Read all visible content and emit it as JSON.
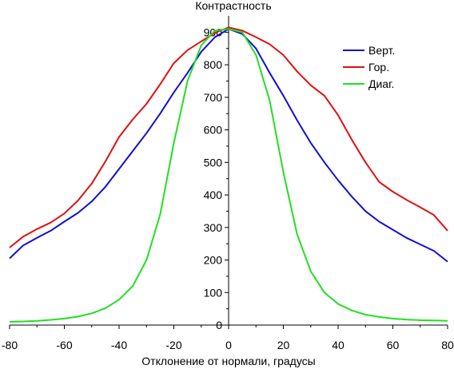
{
  "chart_data": {
    "type": "line",
    "title": "Контрастность",
    "xlabel": "Отклонение от нормали, градусы",
    "ylabel": "",
    "xlim": [
      -80,
      80
    ],
    "ylim": [
      0,
      950
    ],
    "xticks": [
      -80,
      -60,
      -40,
      -20,
      0,
      20,
      40,
      60,
      80
    ],
    "yticks": [
      0,
      100,
      200,
      300,
      400,
      500,
      600,
      700,
      800,
      900
    ],
    "grid": false,
    "legend_position": "top-right",
    "series": [
      {
        "name": "Верт.",
        "color": "#1010d0",
        "x": [
          -80,
          -75,
          -70,
          -65,
          -60,
          -55,
          -50,
          -45,
          -40,
          -35,
          -30,
          -25,
          -20,
          -15,
          -10,
          -5,
          0,
          5,
          10,
          15,
          20,
          25,
          30,
          35,
          40,
          45,
          50,
          55,
          60,
          65,
          70,
          75,
          80
        ],
        "y": [
          205,
          245,
          268,
          290,
          318,
          345,
          380,
          425,
          480,
          535,
          590,
          650,
          715,
          775,
          840,
          885,
          910,
          895,
          850,
          775,
          705,
          630,
          560,
          500,
          445,
          395,
          350,
          318,
          293,
          268,
          248,
          228,
          195
        ]
      },
      {
        "name": "Гор.",
        "color": "#e01010",
        "x": [
          -80,
          -75,
          -70,
          -65,
          -60,
          -55,
          -50,
          -45,
          -40,
          -35,
          -30,
          -25,
          -20,
          -15,
          -10,
          -5,
          0,
          5,
          10,
          15,
          20,
          25,
          30,
          35,
          40,
          45,
          50,
          55,
          60,
          65,
          70,
          75,
          80
        ],
        "y": [
          238,
          272,
          295,
          315,
          343,
          383,
          435,
          503,
          578,
          632,
          680,
          740,
          805,
          845,
          872,
          898,
          915,
          905,
          885,
          863,
          830,
          780,
          737,
          705,
          645,
          570,
          500,
          440,
          410,
          385,
          362,
          338,
          290
        ]
      },
      {
        "name": "Диаг.",
        "color": "#20e020",
        "x": [
          -80,
          -75,
          -70,
          -65,
          -60,
          -55,
          -50,
          -45,
          -40,
          -35,
          -30,
          -25,
          -20,
          -15,
          -10,
          -5,
          0,
          5,
          10,
          15,
          20,
          25,
          30,
          35,
          40,
          45,
          50,
          55,
          60,
          65,
          70,
          75,
          80
        ],
        "y": [
          10,
          11,
          13,
          16,
          20,
          26,
          36,
          52,
          78,
          120,
          200,
          340,
          560,
          750,
          860,
          905,
          910,
          900,
          830,
          690,
          470,
          280,
          165,
          100,
          65,
          45,
          32,
          25,
          20,
          17,
          15,
          14,
          13
        ]
      }
    ]
  }
}
